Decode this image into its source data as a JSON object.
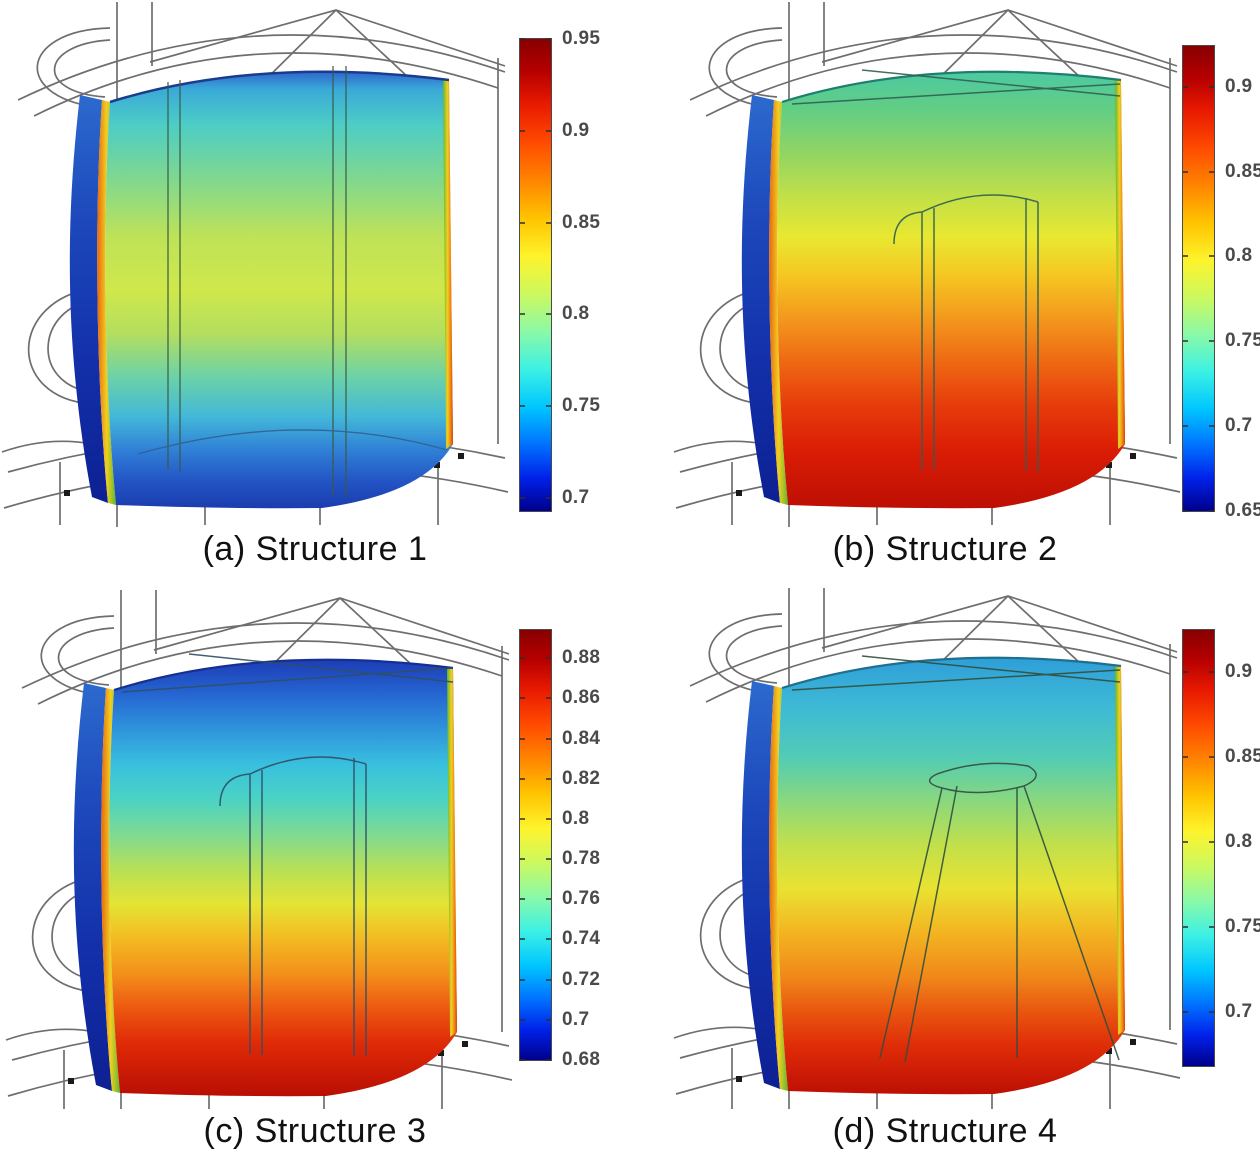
{
  "figure": {
    "kind": "simulation-results-figure",
    "style": "COMSOL-style 3D cutaway cylinder surface plots with jet colorbars",
    "panel_count": 4
  },
  "panels": [
    {
      "caption": "(a) Structure 1",
      "tick_labels": [
        "0.95",
        "0.9",
        "0.85",
        "0.8",
        "0.75",
        "0.7"
      ],
      "gradients": {
        "interior": [
          {
            "o": "0%",
            "c": "#2e66cc"
          },
          {
            "o": "4%",
            "c": "#3aa9d8"
          },
          {
            "o": "12%",
            "c": "#4ccdc6"
          },
          {
            "o": "25%",
            "c": "#82d88d"
          },
          {
            "o": "38%",
            "c": "#bfe257"
          },
          {
            "o": "50%",
            "c": "#cfe84b"
          },
          {
            "o": "60%",
            "c": "#b4de5f"
          },
          {
            "o": "70%",
            "c": "#6cd2a8"
          },
          {
            "o": "79%",
            "c": "#43b8d8"
          },
          {
            "o": "87%",
            "c": "#2f7ed6"
          },
          {
            "o": "94%",
            "c": "#2253c4"
          },
          {
            "o": "100%",
            "c": "#1b3dae"
          }
        ]
      }
    },
    {
      "caption": "(b) Structure 2",
      "tick_labels": [
        "0.9",
        "0.85",
        "0.8",
        "0.75",
        "0.7",
        "0.65"
      ],
      "gradients": {
        "interior": [
          {
            "o": "0%",
            "c": "#4cc9a1"
          },
          {
            "o": "9%",
            "c": "#63ce83"
          },
          {
            "o": "19%",
            "c": "#93d562"
          },
          {
            "o": "29%",
            "c": "#c4e047"
          },
          {
            "o": "38%",
            "c": "#e9e831"
          },
          {
            "o": "47%",
            "c": "#f5c521"
          },
          {
            "o": "57%",
            "c": "#f3961d"
          },
          {
            "o": "67%",
            "c": "#ee6612"
          },
          {
            "o": "77%",
            "c": "#e63a0b"
          },
          {
            "o": "87%",
            "c": "#da1d05"
          },
          {
            "o": "100%",
            "c": "#bd0f04"
          }
        ]
      }
    },
    {
      "caption": "(c) Structure 3",
      "tick_labels": [
        "0.88",
        "0.86",
        "0.84",
        "0.82",
        "0.8",
        "0.78",
        "0.76",
        "0.74",
        "0.72",
        "0.7",
        "0.68"
      ],
      "gradients": {
        "interior": [
          {
            "o": "0%",
            "c": "#1d3db6"
          },
          {
            "o": "8%",
            "c": "#2566d2"
          },
          {
            "o": "16%",
            "c": "#2f94dc"
          },
          {
            "o": "24%",
            "c": "#38c0de"
          },
          {
            "o": "32%",
            "c": "#4bd3c4"
          },
          {
            "o": "40%",
            "c": "#7eda92"
          },
          {
            "o": "48%",
            "c": "#b7e056"
          },
          {
            "o": "56%",
            "c": "#e4e434"
          },
          {
            "o": "64%",
            "c": "#f3ba22"
          },
          {
            "o": "72%",
            "c": "#f38f1b"
          },
          {
            "o": "80%",
            "c": "#ec5710"
          },
          {
            "o": "88%",
            "c": "#df2a07"
          },
          {
            "o": "100%",
            "c": "#b90e04"
          }
        ]
      }
    },
    {
      "caption": "(d) Structure 4",
      "tick_labels": [
        "0.9",
        "0.85",
        "0.8",
        "0.75",
        "0.7"
      ],
      "gradients": {
        "interior": [
          {
            "o": "0%",
            "c": "#2f9ed8"
          },
          {
            "o": "11%",
            "c": "#3db9d6"
          },
          {
            "o": "23%",
            "c": "#53ccb4"
          },
          {
            "o": "33%",
            "c": "#8ad87c"
          },
          {
            "o": "43%",
            "c": "#c2e04b"
          },
          {
            "o": "53%",
            "c": "#e9e232"
          },
          {
            "o": "63%",
            "c": "#f3b421"
          },
          {
            "o": "73%",
            "c": "#f0881a"
          },
          {
            "o": "81%",
            "c": "#e9560f"
          },
          {
            "o": "89%",
            "c": "#df2c08"
          },
          {
            "o": "100%",
            "c": "#bd0f04"
          }
        ]
      }
    }
  ],
  "chart_data": [
    {
      "type": "heatmap",
      "subplot": "a",
      "title": "(a) Structure 1",
      "visualization": "3D cutaway cylinder surface plot, empty cavity (no inner structure)",
      "colormap": "jet",
      "colorbar_ticks": [
        0.95,
        0.9,
        0.85,
        0.8,
        0.75,
        0.7
      ],
      "colorbar_range": [
        0.693,
        0.95
      ],
      "legend_position": "right",
      "surface_summary": "Inner wall cyan near top (~0.78), yellow-green at mid-height (~0.84), cyan-blue near bottom (~0.75); outer shell dark blue (~0.70); thin hot orange stripe on cut wall cross-section (~0.90)"
    },
    {
      "type": "heatmap",
      "subplot": "b",
      "title": "(b) Structure 2",
      "visualization": "3D cutaway cylinder surface plot with inner cylinder wireframe",
      "colormap": "jet",
      "colorbar_ticks": [
        0.9,
        0.85,
        0.8,
        0.75,
        0.7,
        0.65
      ],
      "colorbar_range": [
        0.65,
        0.924
      ],
      "legend_position": "right",
      "surface_summary": "Top surface teal-green (~0.78) grading through yellow (~0.82) and orange to red/dark red at bottom (~0.90); outer shell dark blue (~0.66)"
    },
    {
      "type": "heatmap",
      "subplot": "c",
      "title": "(c) Structure 3",
      "visualization": "3D cutaway cylinder surface plot with inner cylinder wireframe",
      "colormap": "jet",
      "colorbar_ticks": [
        0.88,
        0.86,
        0.84,
        0.82,
        0.8,
        0.78,
        0.76,
        0.74,
        0.72,
        0.7,
        0.68
      ],
      "colorbar_range": [
        0.68,
        0.894
      ],
      "legend_position": "right",
      "surface_summary": "Top surface dark blue (~0.70) grading through cyan, green, yellow (~0.80), orange, to dark red at bottom (~0.88); outer shell dark blue (~0.69)"
    },
    {
      "type": "heatmap",
      "subplot": "d",
      "title": "(d) Structure 4",
      "visualization": "3D cutaway cylinder surface plot with truncated-cone inner wireframe",
      "colormap": "jet",
      "colorbar_ticks": [
        0.9,
        0.85,
        0.8,
        0.75,
        0.7
      ],
      "colorbar_range": [
        0.668,
        0.925
      ],
      "legend_position": "right",
      "surface_summary": "Top surface cyan-blue (~0.76) grading through green, yellow (~0.80), orange, to red/dark red at bottom (~0.90); outer shell dark blue (~0.68)"
    }
  ],
  "colormap_stops": [
    {
      "o": "0%",
      "c": "#870000"
    },
    {
      "o": "7%",
      "c": "#b70000"
    },
    {
      "o": "14%",
      "c": "#e91a00"
    },
    {
      "o": "22%",
      "c": "#ff4b00"
    },
    {
      "o": "30%",
      "c": "#ff8500"
    },
    {
      "o": "38%",
      "c": "#ffc300"
    },
    {
      "o": "46%",
      "c": "#fef32b"
    },
    {
      "o": "54%",
      "c": "#ccf95e"
    },
    {
      "o": "62%",
      "c": "#8bf9a7"
    },
    {
      "o": "70%",
      "c": "#3cf1e4"
    },
    {
      "o": "78%",
      "c": "#00c6ff"
    },
    {
      "o": "86%",
      "c": "#0070ff"
    },
    {
      "o": "93%",
      "c": "#0021e9"
    },
    {
      "o": "100%",
      "c": "#00008b"
    }
  ],
  "colors": {
    "wireframe": "#6e6e6e",
    "outer_shell_top": "#2c6ace",
    "outer_shell_bottom": "#0d2093",
    "colorbar_border": "#4a4a4a",
    "caption_text": "#111111",
    "tick_text": "#4a4a4a"
  }
}
